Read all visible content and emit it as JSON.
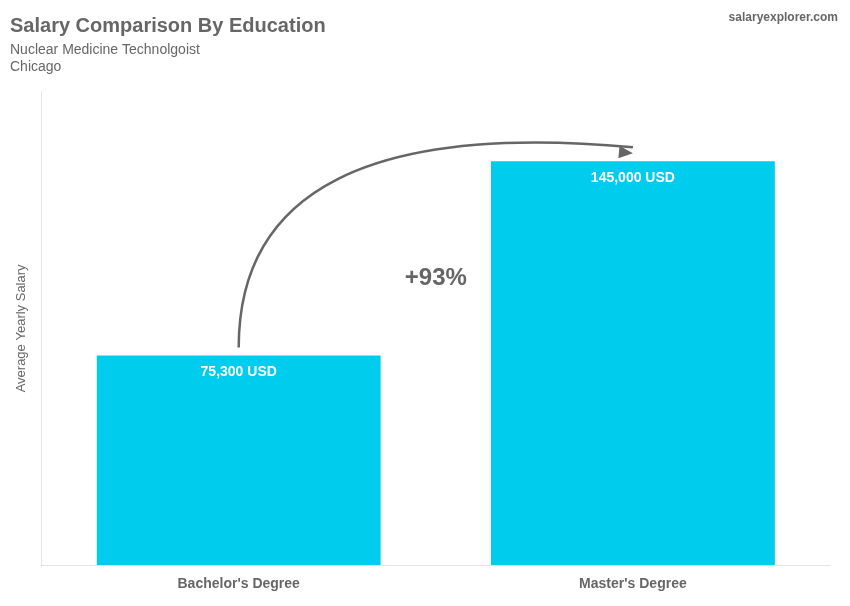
{
  "chart_data": {
    "type": "bar",
    "title": "Salary Comparison By Education",
    "subtitle": [
      "Nuclear Medicine Technolgoist",
      "Chicago"
    ],
    "ylabel": "Average Yearly Salary",
    "categories": [
      "Bachelor's Degree",
      "Master's Degree"
    ],
    "values": [
      75300,
      145000
    ],
    "value_labels": [
      "75,300 USD",
      "145,000 USD"
    ],
    "color": "#00ccee",
    "ylim": [
      0,
      170000
    ],
    "grid": false,
    "tick_labels": "x",
    "annotations": [
      "+93%",
      "salaryexplorer.com"
    ]
  }
}
